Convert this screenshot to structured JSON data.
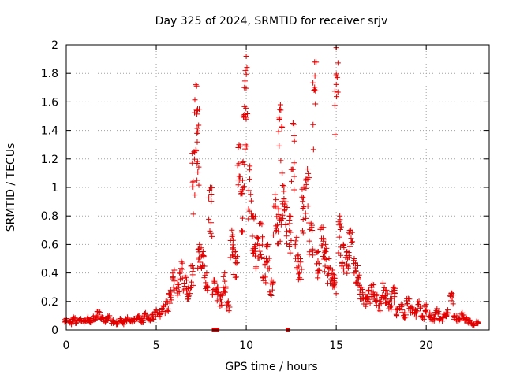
{
  "chart_data": {
    "type": "scatter",
    "title": "Day 325 of 2024, SRMTID for receiver srjv",
    "xlabel": "GPS time / hours",
    "ylabel": "SRMTID / TECUs",
    "xlim": [
      0,
      23.5
    ],
    "ylim": [
      0,
      2
    ],
    "xticks": [
      0,
      5,
      10,
      15,
      20
    ],
    "xtick_labels": [
      "0",
      "5",
      "10",
      "15",
      "20"
    ],
    "yticks": [
      0,
      0.2,
      0.4,
      0.6,
      0.8,
      1,
      1.2,
      1.4,
      1.6,
      1.8,
      2
    ],
    "ytick_labels": [
      "0",
      "0.2",
      "0.4",
      "0.6",
      "0.8",
      "1",
      "1.2",
      "1.4",
      "1.6",
      "1.8",
      "2"
    ],
    "grid": true,
    "marker": "+",
    "color": "#e00000",
    "series": [
      {
        "name": "SRMTID",
        "x": [
          0.0,
          0.2,
          0.4,
          0.6,
          0.8,
          1.0,
          1.2,
          1.4,
          1.6,
          1.8,
          2.0,
          2.2,
          2.4,
          2.6,
          2.8,
          3.0,
          3.2,
          3.4,
          3.6,
          3.8,
          4.0,
          4.2,
          4.4,
          4.6,
          4.8,
          5.0,
          5.2,
          5.4,
          5.6,
          5.8,
          6.0,
          6.2,
          6.4,
          6.6,
          6.8,
          7.0,
          7.1,
          7.2,
          7.3,
          7.4,
          7.6,
          7.8,
          8.0,
          8.2,
          8.4,
          8.6,
          8.8,
          9.0,
          9.2,
          9.4,
          9.6,
          9.8,
          9.9,
          10.0,
          10.2,
          10.4,
          10.6,
          10.8,
          11.0,
          11.2,
          11.4,
          11.6,
          11.8,
          11.9,
          12.0,
          12.2,
          12.4,
          12.6,
          12.8,
          13.0,
          13.2,
          13.4,
          13.6,
          13.8,
          14.0,
          14.2,
          14.4,
          14.6,
          14.8,
          14.9,
          15.0,
          15.2,
          15.4,
          15.6,
          15.8,
          16.0,
          16.2,
          16.4,
          16.6,
          16.8,
          17.0,
          17.2,
          17.4,
          17.6,
          17.8,
          18.0,
          18.2,
          18.4,
          18.6,
          18.8,
          19.0,
          19.2,
          19.4,
          19.6,
          19.8,
          20.0,
          20.2,
          20.4,
          20.6,
          20.8,
          21.0,
          21.2,
          21.4,
          21.6,
          21.8,
          22.0,
          22.2,
          22.4,
          22.6,
          22.8
        ],
        "y": [
          0.08,
          0.06,
          0.09,
          0.07,
          0.08,
          0.07,
          0.09,
          0.08,
          0.1,
          0.13,
          0.09,
          0.08,
          0.1,
          0.07,
          0.06,
          0.08,
          0.06,
          0.09,
          0.07,
          0.08,
          0.1,
          0.08,
          0.12,
          0.09,
          0.11,
          0.14,
          0.12,
          0.17,
          0.2,
          0.28,
          0.42,
          0.35,
          0.48,
          0.38,
          0.3,
          0.45,
          1.25,
          1.72,
          1.55,
          0.6,
          0.55,
          0.4,
          1.0,
          0.35,
          0.3,
          0.25,
          0.4,
          0.2,
          0.7,
          0.55,
          1.3,
          1.05,
          1.7,
          1.92,
          1.15,
          0.8,
          0.65,
          0.75,
          0.5,
          0.6,
          0.35,
          0.95,
          0.85,
          1.58,
          1.1,
          0.9,
          0.8,
          1.45,
          0.65,
          0.5,
          1.0,
          1.13,
          0.75,
          1.88,
          0.55,
          0.72,
          0.6,
          0.5,
          0.42,
          0.38,
          1.98,
          0.8,
          0.6,
          0.55,
          0.7,
          0.5,
          0.45,
          0.3,
          0.25,
          0.28,
          0.32,
          0.25,
          0.2,
          0.33,
          0.28,
          0.22,
          0.3,
          0.15,
          0.18,
          0.12,
          0.22,
          0.16,
          0.14,
          0.2,
          0.1,
          0.18,
          0.12,
          0.09,
          0.15,
          0.08,
          0.11,
          0.14,
          0.26,
          0.1,
          0.08,
          0.12,
          0.09,
          0.07,
          0.05,
          0.06
        ]
      }
    ],
    "zero_markers_x": [
      8.2,
      8.4,
      12.3
    ]
  }
}
